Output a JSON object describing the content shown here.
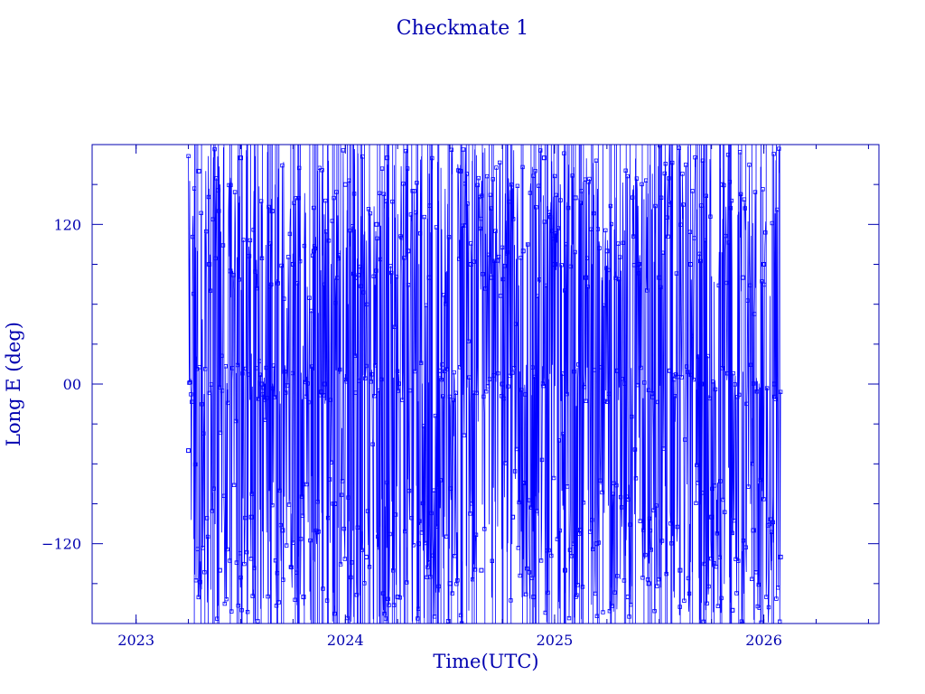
{
  "chart_data": {
    "type": "scatter",
    "title": "Checkmate 1",
    "xlabel": "Time(UTC)",
    "ylabel": "Long E (deg)",
    "xlim": [
      2022.79,
      2026.55
    ],
    "ylim": [
      -180,
      180
    ],
    "x_ticks": [
      2023,
      2024,
      2025,
      2026
    ],
    "x_tick_labels": [
      "2023",
      "2024",
      "2025",
      "2026"
    ],
    "y_ticks": [
      -120,
      0,
      120
    ],
    "y_tick_labels": [
      "−120",
      "00",
      "120"
    ],
    "grid": false,
    "legend": "none",
    "series_color": "#0000ff",
    "axis_color": "#0000b0",
    "data_start": 2023.25,
    "data_end": 2026.08,
    "series": [
      {
        "x": [
          2023.25,
          2023.3,
          2023.35,
          2023.4,
          2023.45,
          2023.5,
          2023.55,
          2023.6,
          2023.65,
          2023.7,
          2023.75,
          2023.8,
          2023.85,
          2023.9,
          2023.95,
          2024.0,
          2024.05,
          2024.1,
          2024.15,
          2024.2,
          2024.25,
          2024.3,
          2024.35,
          2024.4,
          2024.45,
          2024.5,
          2024.55,
          2024.6,
          2024.65,
          2024.7,
          2024.75,
          2024.8,
          2024.85,
          2024.9,
          2024.95,
          2025.0,
          2025.05,
          2025.1,
          2025.15,
          2025.2,
          2025.25,
          2025.3,
          2025.35,
          2025.4,
          2025.45,
          2025.5,
          2025.55,
          2025.6,
          2025.65,
          2025.7,
          2025.75,
          2025.8,
          2025.85,
          2025.9,
          2025.95,
          2026.0,
          2026.05,
          2026.08
        ],
        "y": [
          -50,
          160,
          90,
          -140,
          85,
          170,
          -100,
          0,
          130,
          -110,
          90,
          -160,
          100,
          0,
          -90,
          150,
          80,
          -130,
          120,
          170,
          -160,
          100,
          -120,
          80,
          10,
          -150,
          160,
          90,
          -140,
          80,
          0,
          -100,
          100,
          -160,
          170,
          90,
          -140,
          140,
          80,
          -120,
          100,
          10,
          -160,
          90,
          -150,
          80,
          10,
          -140,
          90,
          0,
          -100,
          150,
          -170,
          80,
          -110,
          90,
          0,
          -130
        ]
      }
    ]
  }
}
